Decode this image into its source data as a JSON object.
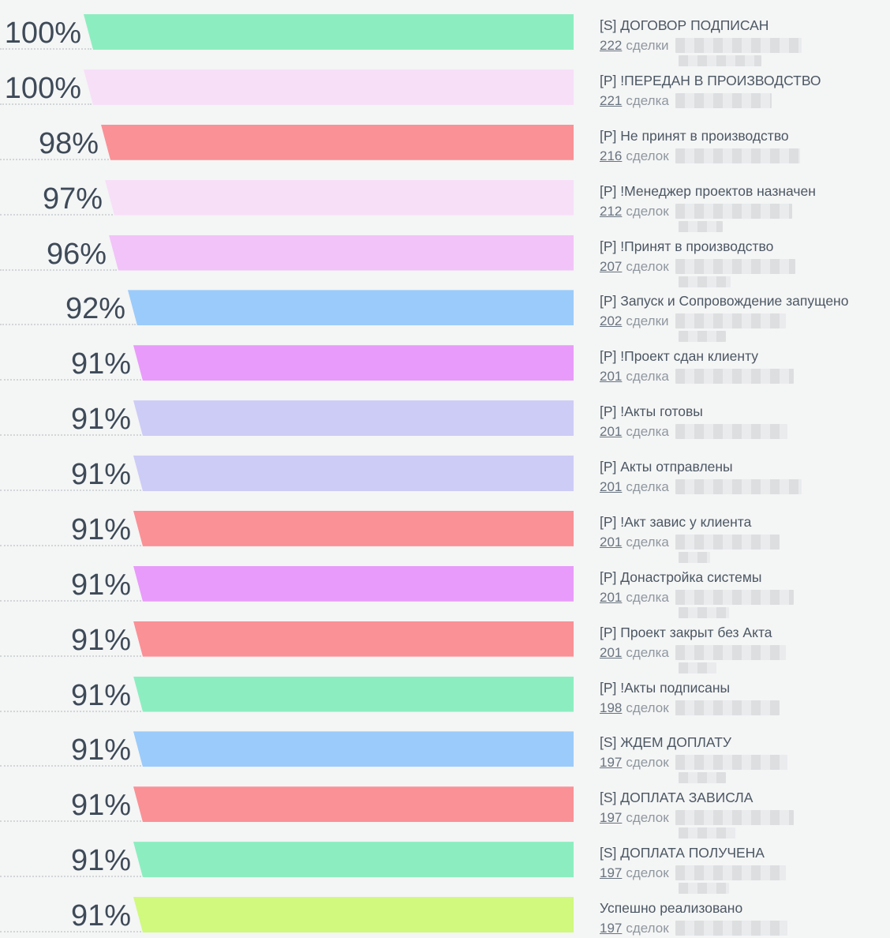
{
  "chart_data": {
    "type": "bar",
    "variant": "horizontal-funnel",
    "title": "",
    "xlabel": "",
    "ylabel": "",
    "xlim": [
      0,
      100
    ],
    "legend": false,
    "grid": false,
    "categories": [
      "[S] ДОГОВОР ПОДПИСАН",
      "[P] !ПЕРЕДАН В ПРОИЗВОДСТВО",
      "[P] Не принят в производство",
      "[P] !Менеджер проектов назначен",
      "[P] !Принят в производство",
      "[P] Запуск и Сопровождение запущено",
      "[P] !Проект сдан клиенту",
      "[P] !Акты готовы",
      "[P] Акты отправлены",
      "[P] !Акт завис у клиента",
      "[P] Донастройка системы",
      "[P] Проект закрыт без Акта",
      "[P] !Акты подписаны",
      "[S] ЖДЕМ ДОПЛАТУ",
      "[S] ДОПЛАТА ЗАВИСЛА",
      "[S] ДОПЛАТА ПОЛУЧЕНА",
      "Успешно реализовано"
    ],
    "series": [
      {
        "name": "conversion_percent",
        "values": [
          100,
          100,
          98,
          97,
          96,
          92,
          91,
          91,
          91,
          91,
          91,
          91,
          91,
          91,
          91,
          91,
          91
        ]
      },
      {
        "name": "deal_count",
        "values": [
          222,
          221,
          216,
          212,
          207,
          202,
          201,
          201,
          201,
          201,
          201,
          201,
          198,
          197,
          197,
          197,
          197
        ]
      }
    ],
    "bar_colors": [
      "#8ceec0",
      "#f7dff8",
      "#fa9196",
      "#f7dff8",
      "#f1c3f8",
      "#9bcbfa",
      "#e89bfa",
      "#cdccf6",
      "#cdccf6",
      "#fa9196",
      "#e89bfa",
      "#fa9196",
      "#8ceec0",
      "#9bcbfa",
      "#fa9196",
      "#8ceec0",
      "#d0f97e"
    ],
    "amounts_redacted": true
  },
  "funnel": {
    "background_color": "#f4f5f5",
    "percent_text_color": "#3e4a58",
    "title_text_color": "#4c5763",
    "stages": [
      {
        "percent": 100,
        "percent_label": "100%",
        "label": "[S] ДОГОВОР ПОДПИСАН",
        "count": "222",
        "count_word": "сделки",
        "amount_redacted": true,
        "color": "#8ceec0"
      },
      {
        "percent": 100,
        "percent_label": "100%",
        "label": "[P] !ПЕРЕДАН В ПРОИЗВОДСТВО",
        "count": "221",
        "count_word": "сделка",
        "amount_redacted": true,
        "color": "#f7dff8"
      },
      {
        "percent": 98,
        "percent_label": "98%",
        "label": "[P] Не принят в производство",
        "count": "216",
        "count_word": "сделок",
        "amount_redacted": true,
        "color": "#fa9196"
      },
      {
        "percent": 97,
        "percent_label": "97%",
        "label": "[P] !Менеджер проектов назначен",
        "count": "212",
        "count_word": "сделок",
        "amount_redacted": true,
        "color": "#f7dff8"
      },
      {
        "percent": 96,
        "percent_label": "96%",
        "label": "[P] !Принят в производство",
        "count": "207",
        "count_word": "сделок",
        "amount_redacted": true,
        "color": "#f1c3f8"
      },
      {
        "percent": 92,
        "percent_label": "92%",
        "label": "[P] Запуск и Сопровождение запущено",
        "count": "202",
        "count_word": "сделки",
        "amount_redacted": true,
        "color": "#9bcbfa"
      },
      {
        "percent": 91,
        "percent_label": "91%",
        "label": "[P] !Проект сдан клиенту",
        "count": "201",
        "count_word": "сделка",
        "amount_redacted": true,
        "color": "#e89bfa"
      },
      {
        "percent": 91,
        "percent_label": "91%",
        "label": "[P] !Акты готовы",
        "count": "201",
        "count_word": "сделка",
        "amount_redacted": true,
        "color": "#cdccf6"
      },
      {
        "percent": 91,
        "percent_label": "91%",
        "label": "[P] Акты отправлены",
        "count": "201",
        "count_word": "сделка",
        "amount_redacted": true,
        "color": "#cdccf6"
      },
      {
        "percent": 91,
        "percent_label": "91%",
        "label": "[P] !Акт завис у клиента",
        "count": "201",
        "count_word": "сделка",
        "amount_redacted": true,
        "color": "#fa9196"
      },
      {
        "percent": 91,
        "percent_label": "91%",
        "label": "[P] Донастройка системы",
        "count": "201",
        "count_word": "сделка",
        "amount_redacted": true,
        "color": "#e89bfa"
      },
      {
        "percent": 91,
        "percent_label": "91%",
        "label": "[P] Проект закрыт без Акта",
        "count": "201",
        "count_word": "сделка",
        "amount_redacted": true,
        "color": "#fa9196"
      },
      {
        "percent": 91,
        "percent_label": "91%",
        "label": "[P] !Акты подписаны",
        "count": "198",
        "count_word": "сделок",
        "amount_redacted": true,
        "color": "#8ceec0"
      },
      {
        "percent": 91,
        "percent_label": "91%",
        "label": "[S] ЖДЕМ ДОПЛАТУ",
        "count": "197",
        "count_word": "сделок",
        "amount_redacted": true,
        "color": "#9bcbfa"
      },
      {
        "percent": 91,
        "percent_label": "91%",
        "label": "[S] ДОПЛАТА ЗАВИСЛА",
        "count": "197",
        "count_word": "сделок",
        "amount_redacted": true,
        "color": "#fa9196"
      },
      {
        "percent": 91,
        "percent_label": "91%",
        "label": "[S] ДОПЛАТА ПОЛУЧЕНА",
        "count": "197",
        "count_word": "сделок",
        "amount_redacted": true,
        "color": "#8ceec0"
      },
      {
        "percent": 91,
        "percent_label": "91%",
        "label": "Успешно реализовано",
        "count": "197",
        "count_word": "сделок",
        "amount_redacted": true,
        "color": "#d0f97e"
      }
    ]
  }
}
